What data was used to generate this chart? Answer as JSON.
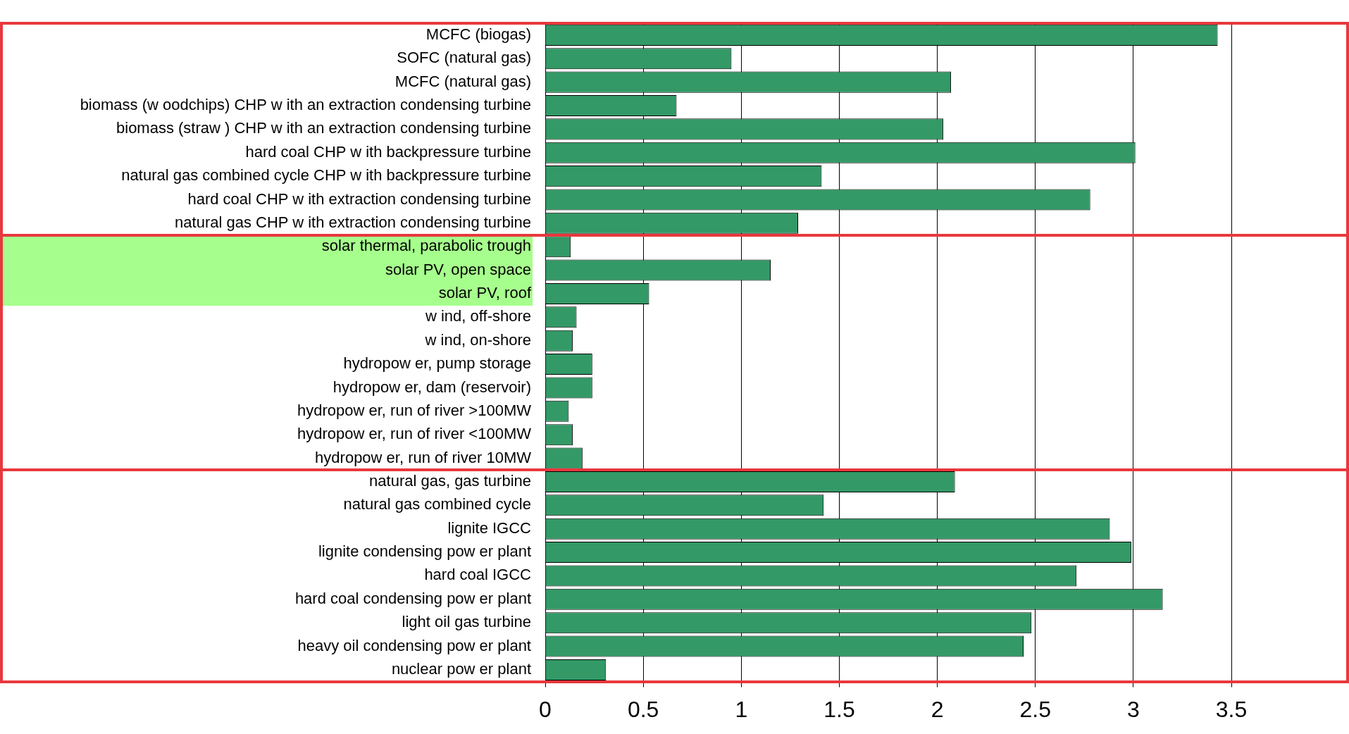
{
  "chart_data": {
    "type": "bar",
    "orientation": "horizontal",
    "categories": [
      "MCFC (biogas)",
      "SOFC (natural gas)",
      "MCFC (natural gas)",
      "biomass (w oodchips) CHP w ith an extraction condensing turbine",
      "biomass (straw ) CHP w ith an extraction condensing turbine",
      "hard coal CHP w ith backpressure turbine",
      "natural gas combined cycle CHP w ith backpressure turbine",
      "hard coal CHP w ith extraction condensing turbine",
      "natural gas CHP w ith extraction condensing turbine",
      "solar thermal, parabolic trough",
      "solar PV, open space",
      "solar PV, roof",
      "w ind, off-shore",
      "w ind, on-shore",
      "hydropow er, pump storage",
      "hydropow er, dam (reservoir)",
      "hydropow er, run of river >100MW",
      "hydropow er, run of river <100MW",
      "hydropow er, run of river 10MW",
      "natural gas, gas turbine",
      "natural gas combined cycle",
      "lignite IGCC",
      "lignite condensing pow er plant",
      "hard coal IGCC",
      "hard coal condensing pow er plant",
      "light oil gas turbine",
      "heavy oil condensing pow er plant",
      "nuclear pow er plant"
    ],
    "values": [
      3.43,
      0.95,
      2.07,
      0.67,
      2.03,
      3.01,
      1.41,
      2.78,
      1.29,
      0.13,
      1.15,
      0.53,
      0.16,
      0.14,
      0.24,
      0.24,
      0.12,
      0.14,
      0.19,
      2.09,
      1.42,
      2.88,
      2.99,
      2.71,
      3.15,
      2.48,
      2.44,
      0.31
    ],
    "color": "#339966",
    "xlim": [
      0,
      4.1
    ],
    "xticks": [
      0,
      0.5,
      1,
      1.5,
      2,
      2.5,
      3,
      3.5
    ],
    "grid": "x",
    "legend": false
  }
}
